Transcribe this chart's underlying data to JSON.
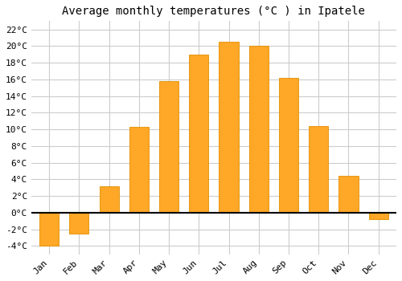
{
  "title": "Average monthly temperatures (°C ) in Ipatele",
  "months": [
    "Jan",
    "Feb",
    "Mar",
    "Apr",
    "May",
    "Jun",
    "Jul",
    "Aug",
    "Sep",
    "Oct",
    "Nov",
    "Dec"
  ],
  "values": [
    -4.0,
    -2.5,
    3.2,
    10.3,
    15.8,
    19.0,
    20.5,
    20.0,
    16.2,
    10.4,
    4.4,
    -0.8
  ],
  "bar_color": "#FFA726",
  "bar_edge_color": "#E09000",
  "ylim": [
    -5,
    23
  ],
  "yticks": [
    -4,
    -2,
    0,
    2,
    4,
    6,
    8,
    10,
    12,
    14,
    16,
    18,
    20,
    22
  ],
  "ytick_labels": [
    "-4°C",
    "-2°C",
    "0°C",
    "2°C",
    "4°C",
    "6°C",
    "8°C",
    "10°C",
    "12°C",
    "14°C",
    "16°C",
    "18°C",
    "20°C",
    "22°C"
  ],
  "background_color": "#ffffff",
  "grid_color": "#cccccc",
  "title_fontsize": 10,
  "tick_fontsize": 8,
  "zero_line_color": "#000000",
  "bar_width": 0.65
}
